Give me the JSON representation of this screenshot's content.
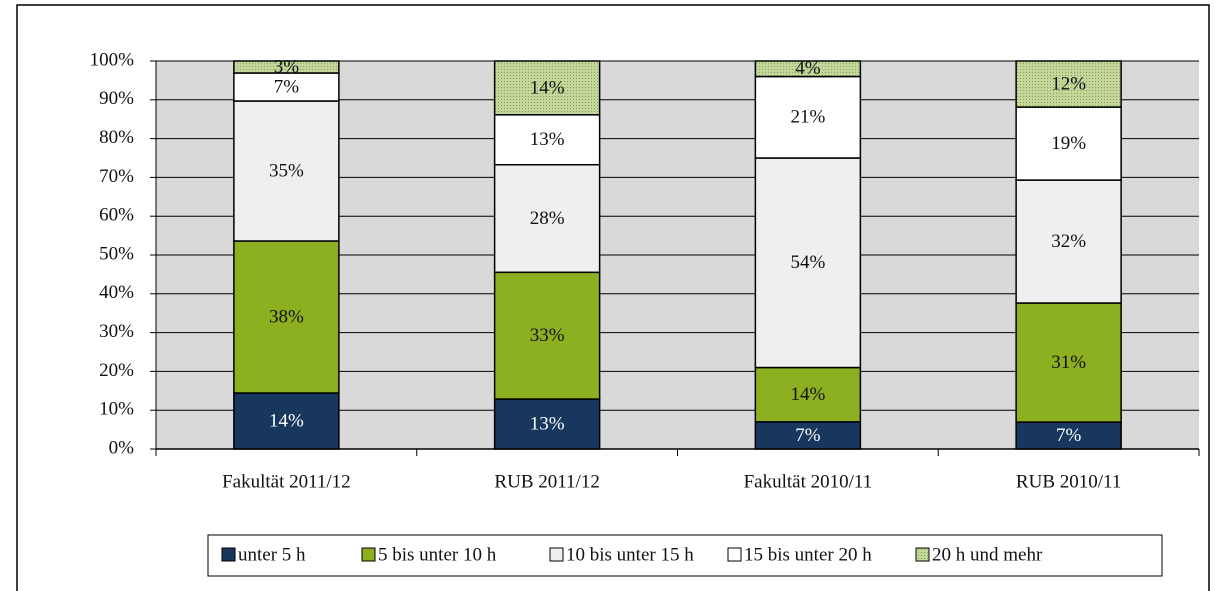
{
  "chart_data": {
    "type": "bar",
    "stacked": "percent",
    "categories": [
      "Fakultät 2011/12",
      "RUB 2011/12",
      "Fakultät 2010/11",
      "RUB 2010/11"
    ],
    "series": [
      {
        "name": "unter 5 h",
        "color": "#17375e",
        "values": [
          14,
          13,
          7,
          7
        ],
        "value_labels": [
          "14%",
          "13%",
          "7%",
          "7%"
        ]
      },
      {
        "name": "5 bis unter 10 h",
        "color": "#8db020",
        "values": [
          38,
          33,
          14,
          31
        ],
        "value_labels": [
          "38%",
          "33%",
          "14%",
          "31%"
        ]
      },
      {
        "name": "10 bis unter 15 h",
        "color": "#efefef",
        "values": [
          35,
          28,
          54,
          32
        ],
        "value_labels": [
          "35%",
          "28%",
          "54%",
          "32%"
        ]
      },
      {
        "name": "15 bis unter 20 h",
        "color": "#ffffff",
        "values": [
          7,
          13,
          21,
          19
        ],
        "value_labels": [
          "7%",
          "13%",
          "21%",
          "19%"
        ]
      },
      {
        "name": "20 h und mehr",
        "color": "#c3d69b",
        "values": [
          3,
          14,
          4,
          12
        ],
        "value_labels": [
          "3%",
          "14%",
          "4%",
          "12%"
        ]
      }
    ],
    "ylim": [
      0,
      100
    ],
    "yticks": [
      {
        "value": 0,
        "label": "0%"
      },
      {
        "value": 10,
        "label": "10%"
      },
      {
        "value": 20,
        "label": "20%"
      },
      {
        "value": 30,
        "label": "30%"
      },
      {
        "value": 40,
        "label": "40%"
      },
      {
        "value": 50,
        "label": "50%"
      },
      {
        "value": 60,
        "label": "60%"
      },
      {
        "value": 70,
        "label": "70%"
      },
      {
        "value": 80,
        "label": "80%"
      },
      {
        "value": 90,
        "label": "90%"
      },
      {
        "value": 100,
        "label": "100%"
      }
    ],
    "grid": true,
    "legend": "bottom"
  }
}
